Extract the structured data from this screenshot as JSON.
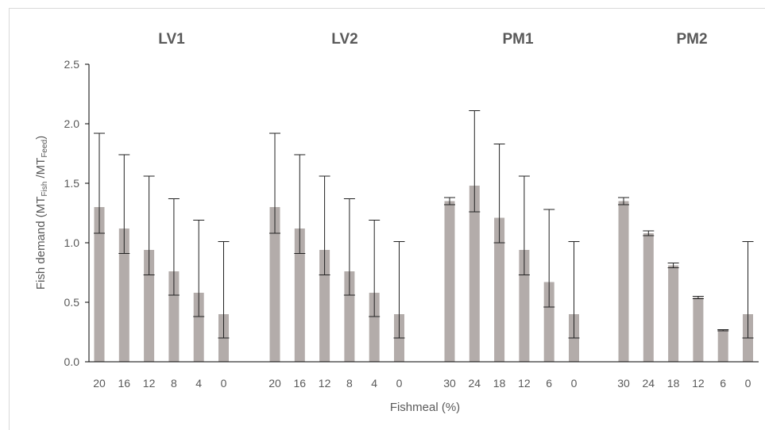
{
  "chart_data": {
    "type": "bar",
    "xlabel": "Fishmeal (%)",
    "ylabel": {
      "main": "Fish demand",
      "open": "(MT",
      "sub1": "Fish",
      "mid": " /MT",
      "sub2": "Feed",
      "close": ")"
    },
    "ylim": [
      0,
      2.5
    ],
    "yticks": [
      "0.0",
      "0.5",
      "1.0",
      "1.5",
      "2.0",
      "2.5"
    ],
    "ytick_values": [
      0,
      0.5,
      1.0,
      1.5,
      2.0,
      2.5
    ],
    "grid": false,
    "bar_color": "#b3acaa",
    "axis_color": "#000000",
    "text_color": "#595959",
    "panels": [
      {
        "title": "LV1",
        "categories": [
          "20",
          "16",
          "12",
          "8",
          "4",
          "0"
        ],
        "values": [
          1.3,
          1.12,
          0.94,
          0.76,
          0.58,
          0.4
        ],
        "error_low": [
          1.08,
          0.91,
          0.73,
          0.56,
          0.38,
          0.2
        ],
        "error_high": [
          1.92,
          1.74,
          1.56,
          1.37,
          1.19,
          1.01
        ]
      },
      {
        "title": "LV2",
        "categories": [
          "20",
          "16",
          "12",
          "8",
          "4",
          "0"
        ],
        "values": [
          1.3,
          1.12,
          0.94,
          0.76,
          0.58,
          0.4
        ],
        "error_low": [
          1.08,
          0.91,
          0.73,
          0.56,
          0.38,
          0.2
        ],
        "error_high": [
          1.92,
          1.74,
          1.56,
          1.37,
          1.19,
          1.01
        ]
      },
      {
        "title": "PM1",
        "categories": [
          "30",
          "24",
          "18",
          "12",
          "6",
          "0"
        ],
        "values": [
          1.35,
          1.48,
          1.21,
          0.94,
          0.67,
          0.4
        ],
        "error_low": [
          1.32,
          1.26,
          1.0,
          0.73,
          0.46,
          0.2
        ],
        "error_high": [
          1.38,
          2.11,
          1.83,
          1.56,
          1.28,
          1.01
        ]
      },
      {
        "title": "PM2",
        "categories": [
          "30",
          "24",
          "18",
          "12",
          "6",
          "0"
        ],
        "values": [
          1.35,
          1.08,
          0.81,
          0.54,
          0.27,
          0.4
        ],
        "error_low": [
          1.32,
          1.06,
          0.79,
          0.53,
          0.26,
          0.2
        ],
        "error_high": [
          1.38,
          1.1,
          0.83,
          0.55,
          0.27,
          1.01
        ]
      }
    ]
  }
}
